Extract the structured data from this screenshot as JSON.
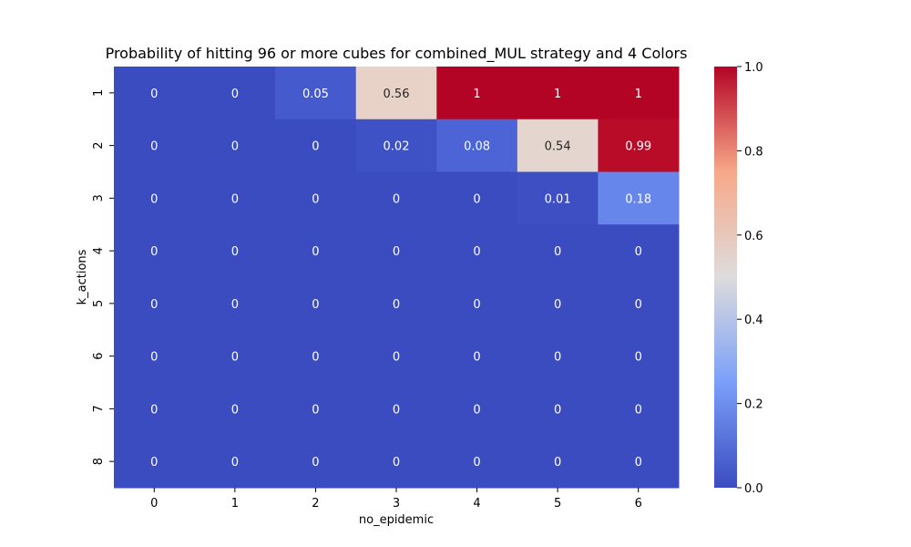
{
  "chart_data": {
    "type": "heatmap",
    "title": "Probability of hitting 96 or more cubes for combined_MUL strategy and 4 Colors",
    "xlabel": "no_epidemic",
    "ylabel": "k_actions",
    "x_categories": [
      "0",
      "1",
      "2",
      "3",
      "4",
      "5",
      "6"
    ],
    "y_categories": [
      "1",
      "2",
      "3",
      "4",
      "5",
      "6",
      "7",
      "8"
    ],
    "values": [
      [
        0,
        0,
        0.05,
        0.56,
        1,
        1,
        1
      ],
      [
        0,
        0,
        0,
        0.02,
        0.08,
        0.54,
        0.99
      ],
      [
        0,
        0,
        0,
        0,
        0,
        0.01,
        0.18
      ],
      [
        0,
        0,
        0,
        0,
        0,
        0,
        0
      ],
      [
        0,
        0,
        0,
        0,
        0,
        0,
        0
      ],
      [
        0,
        0,
        0,
        0,
        0,
        0,
        0
      ],
      [
        0,
        0,
        0,
        0,
        0,
        0,
        0
      ],
      [
        0,
        0,
        0,
        0,
        0,
        0,
        0
      ]
    ],
    "colormap": "coolwarm",
    "colorbar": {
      "range": [
        0,
        1
      ],
      "ticks": [
        "0.0",
        "0.2",
        "0.4",
        "0.6",
        "0.8",
        "1.0"
      ]
    },
    "grid": false
  }
}
